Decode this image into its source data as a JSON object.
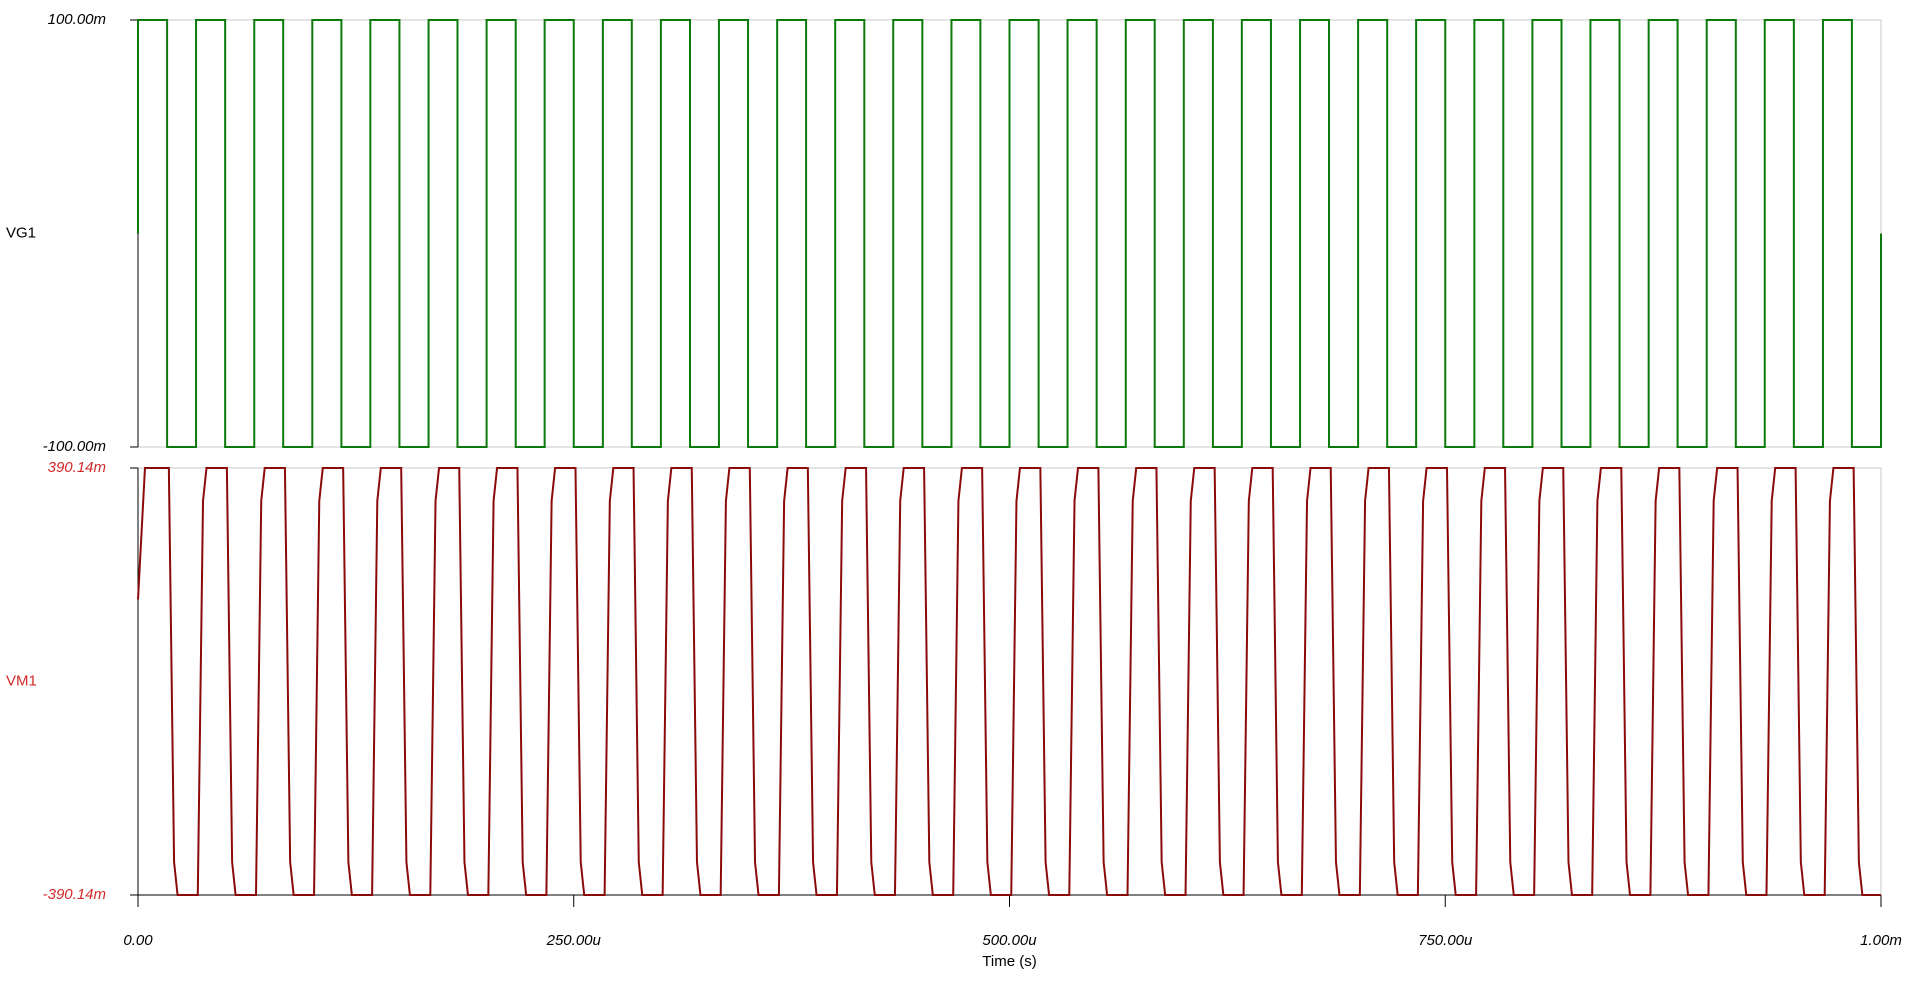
{
  "chart_data": [
    {
      "type": "line",
      "xlim": [
        0,
        0.001
      ],
      "ylim": [
        -0.1,
        0.1
      ],
      "yticks": [
        {
          "value": -0.1,
          "label": "-100.00m"
        },
        {
          "value": 0.1,
          "label": "100.00m"
        }
      ],
      "tick_label_color": "#000000",
      "series": [
        {
          "name": "VG1",
          "color": "#0b7a0b",
          "x": [
            0,
            0,
            1.67e-05,
            1.67e-05,
            3.33e-05,
            3.33e-05,
            5e-05,
            5e-05,
            6.67e-05,
            6.67e-05,
            8.33e-05,
            8.33e-05,
            0.0001,
            0.0001,
            0.0001167,
            0.0001167,
            0.0001333,
            0.0001333,
            0.00015,
            0.00015,
            0.0001667,
            0.0001667,
            0.0001833,
            0.0001833,
            0.0002,
            0.0002,
            0.0002167,
            0.0002167,
            0.0002333,
            0.0002333,
            0.00025,
            0.00025,
            0.0002667,
            0.0002667,
            0.0002833,
            0.0002833,
            0.0003,
            0.0003,
            0.0003167,
            0.0003167,
            0.0003333,
            0.0003333,
            0.00035,
            0.00035,
            0.0003667,
            0.0003667,
            0.0003833,
            0.0003833,
            0.0004,
            0.0004,
            0.0004167,
            0.0004167,
            0.0004333,
            0.0004333,
            0.00045,
            0.00045,
            0.0004667,
            0.0004667,
            0.0004833,
            0.0004833,
            0.0005,
            0.0005,
            0.0005167,
            0.0005167,
            0.0005333,
            0.0005333,
            0.00055,
            0.00055,
            0.0005667,
            0.0005667,
            0.0005833,
            0.0005833,
            0.0006,
            0.0006,
            0.0006167,
            0.0006167,
            0.0006333,
            0.0006333,
            0.00065,
            0.00065,
            0.0006667,
            0.0006667,
            0.0006833,
            0.0006833,
            0.0007,
            0.0007,
            0.0007167,
            0.0007167,
            0.0007333,
            0.0007333,
            0.00075,
            0.00075,
            0.0007667,
            0.0007667,
            0.0007833,
            0.0007833,
            0.0008,
            0.0008,
            0.0008167,
            0.0008167,
            0.0008333,
            0.0008333,
            0.00085,
            0.00085,
            0.0008667,
            0.0008667,
            0.0008833,
            0.0008833,
            0.0009,
            0.0009,
            0.0009167,
            0.0009167,
            0.0009333,
            0.0009333,
            0.00095,
            0.00095,
            0.0009667,
            0.0009667,
            0.0009833,
            0.0009833,
            0.001,
            0.001
          ],
          "values": [
            0,
            0.1,
            0.1,
            -0.1,
            -0.1,
            0.1,
            0.1,
            -0.1,
            -0.1,
            0.1,
            0.1,
            -0.1,
            -0.1,
            0.1,
            0.1,
            -0.1,
            -0.1,
            0.1,
            0.1,
            -0.1,
            -0.1,
            0.1,
            0.1,
            -0.1,
            -0.1,
            0.1,
            0.1,
            -0.1,
            -0.1,
            0.1,
            0.1,
            -0.1,
            -0.1,
            0.1,
            0.1,
            -0.1,
            -0.1,
            0.1,
            0.1,
            -0.1,
            -0.1,
            0.1,
            0.1,
            -0.1,
            -0.1,
            0.1,
            0.1,
            -0.1,
            -0.1,
            0.1,
            0.1,
            -0.1,
            -0.1,
            0.1,
            0.1,
            -0.1,
            -0.1,
            0.1,
            0.1,
            -0.1,
            -0.1,
            0.1,
            0.1,
            -0.1,
            -0.1,
            0.1,
            0.1,
            -0.1,
            -0.1,
            0.1,
            0.1,
            -0.1,
            -0.1,
            0.1,
            0.1,
            -0.1,
            -0.1,
            0.1,
            0.1,
            -0.1,
            -0.1,
            0.1,
            0.1,
            -0.1,
            -0.1,
            0.1,
            0.1,
            -0.1,
            -0.1,
            0.1,
            0.1,
            -0.1,
            -0.1,
            0.1,
            0.1,
            -0.1,
            -0.1,
            0.1,
            0.1,
            -0.1,
            -0.1,
            0.1,
            0.1,
            -0.1,
            -0.1,
            0.1,
            0.1,
            -0.1,
            -0.1,
            0.1,
            0.1,
            -0.1,
            -0.1,
            0.1,
            0.1,
            -0.1,
            -0.1,
            0.1,
            0.1,
            -0.1,
            -0.1,
            0
          ]
        }
      ]
    },
    {
      "type": "line",
      "xlim": [
        0,
        0.001
      ],
      "ylim": [
        -0.39014,
        0.39014
      ],
      "yticks": [
        {
          "value": -0.39014,
          "label": "-390.14m"
        },
        {
          "value": 0.39014,
          "label": "390.14m"
        }
      ],
      "xticks": [
        {
          "value": 0,
          "label": "0.00"
        },
        {
          "value": 0.00025,
          "label": "250.00u"
        },
        {
          "value": 0.0005,
          "label": "500.00u"
        },
        {
          "value": 0.00075,
          "label": "750.00u"
        },
        {
          "value": 0.001,
          "label": "1.00m"
        }
      ],
      "xlabel": "Time (s)",
      "tick_label_color": "#d42a2a",
      "series": [
        {
          "name": "VM1",
          "color": "#8b0a0a",
          "x": [
            0,
            4e-06,
            1.77e-05,
            2.07e-05,
            2.27e-05,
            3.43e-05,
            3.73e-05,
            3.93e-05,
            5.1e-05,
            5.4e-05,
            5.6e-05,
            6.77e-05,
            7.07e-05,
            7.27e-05,
            8.43e-05,
            8.73e-05,
            8.93e-05,
            0.000101,
            0.000104,
            0.000106,
            0.0001177,
            0.0001207,
            0.0001227,
            0.0001343,
            0.0001373,
            0.0001393,
            0.000151,
            0.000154,
            0.000156,
            0.0001677,
            0.0001707,
            0.0001727,
            0.0001843,
            0.0001873,
            0.0001893,
            0.000201,
            0.000204,
            0.000206,
            0.0002177,
            0.0002207,
            0.0002227,
            0.0002343,
            0.0002373,
            0.0002393,
            0.000251,
            0.000254,
            0.000256,
            0.0002677,
            0.0002707,
            0.0002727,
            0.0002843,
            0.0002873,
            0.0002893,
            0.000301,
            0.000304,
            0.000306,
            0.0003177,
            0.0003207,
            0.0003227,
            0.0003343,
            0.0003373,
            0.0003393,
            0.000351,
            0.000354,
            0.000356,
            0.0003677,
            0.0003707,
            0.0003727,
            0.0003843,
            0.0003873,
            0.0003893,
            0.000401,
            0.000404,
            0.000406,
            0.0004177,
            0.0004207,
            0.0004227,
            0.0004343,
            0.0004373,
            0.0004393,
            0.000451,
            0.000454,
            0.000456,
            0.0004677,
            0.0004707,
            0.0004727,
            0.0004843,
            0.0004873,
            0.0004893,
            0.000501,
            0.000504,
            0.000506,
            0.0005177,
            0.0005207,
            0.0005227,
            0.0005343,
            0.0005373,
            0.0005393,
            0.000551,
            0.000554,
            0.000556,
            0.0005677,
            0.0005707,
            0.0005727,
            0.0005843,
            0.0005873,
            0.0005893,
            0.000601,
            0.000604,
            0.000606,
            0.0006177,
            0.0006207,
            0.0006227,
            0.0006343,
            0.0006373,
            0.0006393,
            0.000651,
            0.000654,
            0.000656,
            0.0006677,
            0.0006707,
            0.0006727,
            0.0006843,
            0.0006873,
            0.0006893,
            0.000701,
            0.000704,
            0.000706,
            0.0007177,
            0.0007207,
            0.0007227,
            0.0007343,
            0.0007373,
            0.0007393,
            0.000751,
            0.000754,
            0.000756,
            0.0007677,
            0.0007707,
            0.0007727,
            0.0007843,
            0.0007873,
            0.0007893,
            0.000801,
            0.000804,
            0.000806,
            0.0008177,
            0.0008207,
            0.0008227,
            0.0008343,
            0.0008373,
            0.0008393,
            0.000851,
            0.000854,
            0.000856,
            0.0008677,
            0.0008707,
            0.0008727,
            0.0008843,
            0.0008873,
            0.0008893,
            0.000901,
            0.000904,
            0.000906,
            0.0009177,
            0.0009207,
            0.0009227,
            0.0009343,
            0.0009373,
            0.0009393,
            0.000951,
            0.000954,
            0.000956,
            0.0009677,
            0.0009707,
            0.0009727,
            0.0009843,
            0.0009873,
            0.0009893,
            0.001
          ],
          "values": [
            0.15,
            0.39014,
            0.39014,
            -0.33,
            -0.39014,
            -0.39014,
            0.33,
            0.39014,
            0.39014,
            -0.33,
            -0.39014,
            -0.39014,
            0.33,
            0.39014,
            0.39014,
            -0.33,
            -0.39014,
            -0.39014,
            0.33,
            0.39014,
            0.39014,
            -0.33,
            -0.39014,
            -0.39014,
            0.33,
            0.39014,
            0.39014,
            -0.33,
            -0.39014,
            -0.39014,
            0.33,
            0.39014,
            0.39014,
            -0.33,
            -0.39014,
            -0.39014,
            0.33,
            0.39014,
            0.39014,
            -0.33,
            -0.39014,
            -0.39014,
            0.33,
            0.39014,
            0.39014,
            -0.33,
            -0.39014,
            -0.39014,
            0.33,
            0.39014,
            0.39014,
            -0.33,
            -0.39014,
            -0.39014,
            0.33,
            0.39014,
            0.39014,
            -0.33,
            -0.39014,
            -0.39014,
            0.33,
            0.39014,
            0.39014,
            -0.33,
            -0.39014,
            -0.39014,
            0.33,
            0.39014,
            0.39014,
            -0.33,
            -0.39014,
            -0.39014,
            0.33,
            0.39014,
            0.39014,
            -0.33,
            -0.39014,
            -0.39014,
            0.33,
            0.39014,
            0.39014,
            -0.33,
            -0.39014,
            -0.39014,
            0.33,
            0.39014,
            0.39014,
            -0.33,
            -0.39014,
            -0.39014,
            0.33,
            0.39014,
            0.39014,
            -0.33,
            -0.39014,
            -0.39014,
            0.33,
            0.39014,
            0.39014,
            -0.33,
            -0.39014,
            -0.39014,
            0.33,
            0.39014,
            0.39014,
            -0.33,
            -0.39014,
            -0.39014,
            0.33,
            0.39014,
            0.39014,
            -0.33,
            -0.39014,
            -0.39014,
            0.33,
            0.39014,
            0.39014,
            -0.33,
            -0.39014,
            -0.39014,
            0.33,
            0.39014,
            0.39014,
            -0.33,
            -0.39014,
            -0.39014,
            0.33,
            0.39014,
            0.39014,
            -0.33,
            -0.39014,
            -0.39014,
            0.33,
            0.39014,
            0.39014,
            -0.33,
            -0.39014,
            -0.39014,
            0.33,
            0.39014,
            0.39014,
            -0.33,
            -0.39014,
            -0.39014,
            0.33,
            0.39014,
            0.39014,
            -0.33,
            -0.39014,
            -0.39014,
            0.33,
            0.39014,
            0.39014,
            -0.33,
            -0.39014,
            -0.39014,
            0.33,
            0.39014,
            0.39014,
            -0.33,
            -0.39014,
            -0.39014,
            0.33,
            0.39014,
            0.39014,
            -0.33,
            -0.39014,
            -0.39014,
            0.33,
            0.39014,
            0.39014,
            -0.33,
            -0.39014,
            -0.39014,
            0.33,
            0.39014,
            0.39014,
            -0.33,
            -0.39014,
            -0.39014
          ]
        }
      ]
    }
  ]
}
